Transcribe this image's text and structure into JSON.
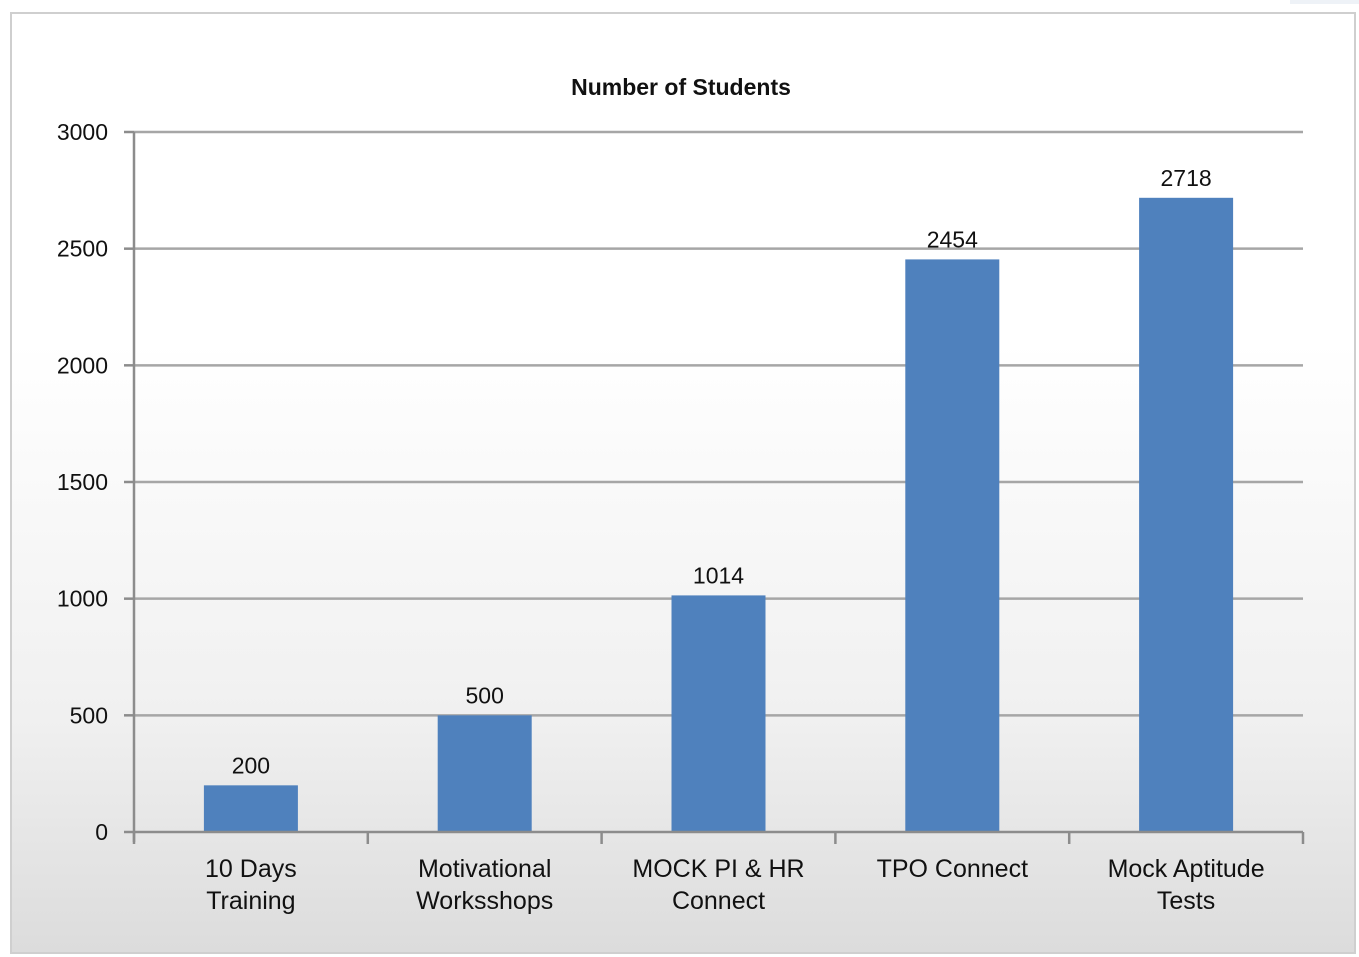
{
  "chart_data": {
    "type": "bar",
    "title": "Number of Students",
    "categories": [
      [
        "10 Days",
        "Training"
      ],
      [
        "Motivational",
        "Worksshops"
      ],
      [
        "MOCK PI & HR",
        "Connect"
      ],
      [
        "TPO Connect"
      ],
      [
        "Mock Aptitude",
        "Tests"
      ]
    ],
    "values": [
      200,
      500,
      1014,
      2454,
      2718
    ],
    "data_labels": [
      "200",
      "500",
      "1014",
      "2454",
      "2718"
    ],
    "ylim": [
      0,
      3000
    ],
    "yticks": [
      0,
      500,
      1000,
      1500,
      2000,
      2500,
      3000
    ],
    "xlabel": "",
    "ylabel": "",
    "grid": true,
    "legend": "none",
    "colors": {
      "bar": "#4f81bd",
      "grid": "#a6a6a6",
      "axis": "#8c8c8c"
    }
  }
}
